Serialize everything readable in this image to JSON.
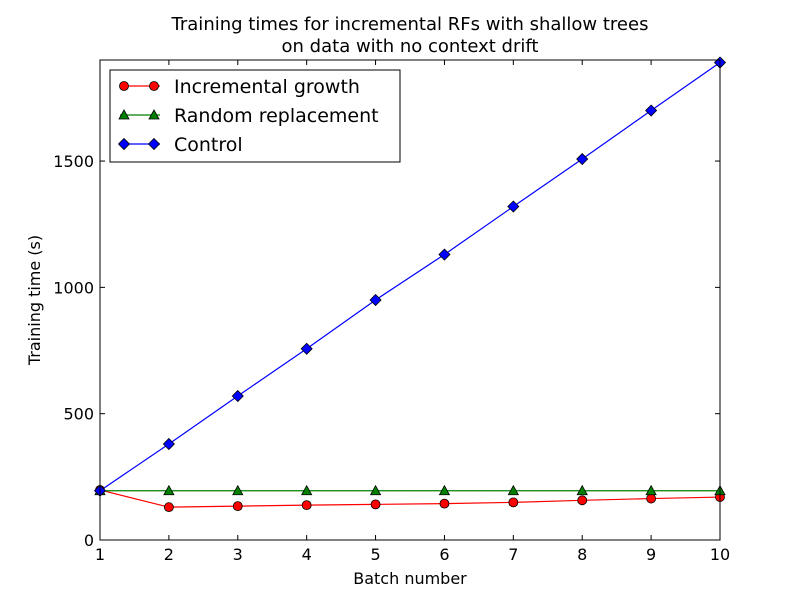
{
  "chart_data": {
    "type": "line",
    "title": "Training times for incremental RFs with shallow trees",
    "subtitle": "on data with no context drift",
    "xlabel": "Batch number",
    "ylabel": "Training time (s)",
    "xlim": [
      1,
      10
    ],
    "ylim": [
      0,
      1900
    ],
    "x_ticks": [
      1,
      2,
      3,
      4,
      5,
      6,
      7,
      8,
      9,
      10
    ],
    "y_ticks": [
      0,
      500,
      1000,
      1500
    ],
    "grid": false,
    "legend_position": "top-left",
    "x": [
      1,
      2,
      3,
      4,
      5,
      6,
      7,
      8,
      9,
      10
    ],
    "series": [
      {
        "name": "Incremental growth",
        "color": "#ff0000",
        "marker": "circle",
        "values": [
          198,
          130,
          134,
          138,
          141,
          144,
          149,
          157,
          164,
          170
        ]
      },
      {
        "name": "Random replacement",
        "color": "#008000",
        "marker": "triangle",
        "values": [
          195,
          195,
          195,
          195,
          195,
          195,
          195,
          195,
          195,
          195
        ]
      },
      {
        "name": "Control",
        "color": "#0000ff",
        "marker": "diamond",
        "values": [
          195,
          380,
          570,
          757,
          950,
          1130,
          1320,
          1508,
          1700,
          1890
        ]
      }
    ]
  }
}
